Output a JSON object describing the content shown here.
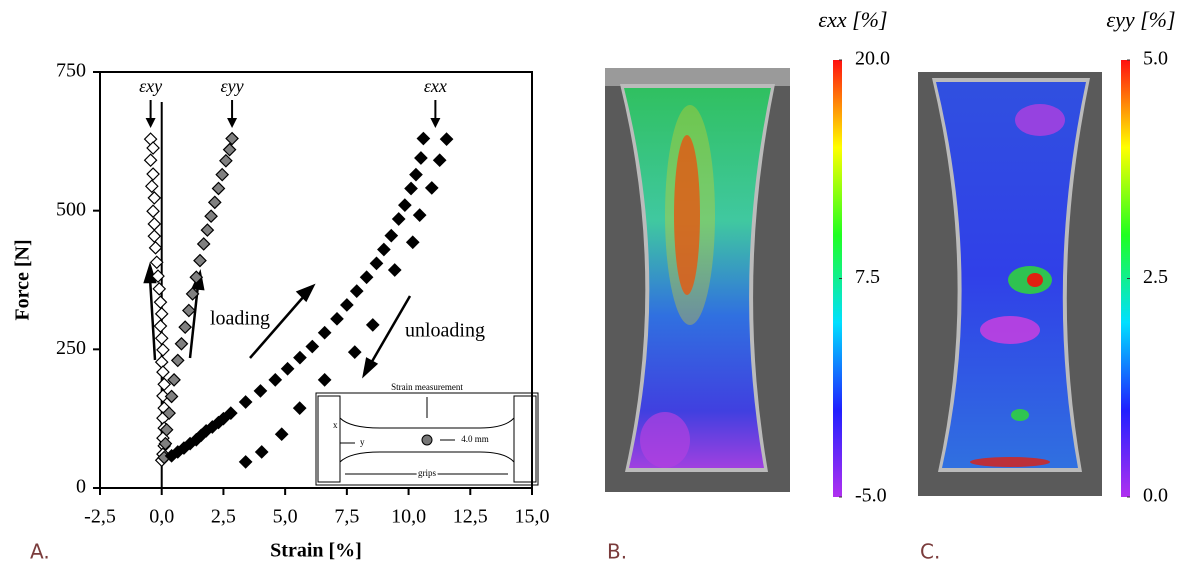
{
  "chart_data": [
    {
      "type": "scatter",
      "panel_label": "A.",
      "xlabel": "Strain [%]",
      "ylabel": "Force [N]",
      "xlim": [
        -2.5,
        15
      ],
      "ylim": [
        0,
        750
      ],
      "xticks": [
        {
          "value": -2.5,
          "label": "-2,5"
        },
        {
          "value": 0,
          "label": "0,0"
        },
        {
          "value": 2.5,
          "label": "2,5"
        },
        {
          "value": 5,
          "label": "5,0"
        },
        {
          "value": 7.5,
          "label": "7,5"
        },
        {
          "value": 10,
          "label": "10,0"
        },
        {
          "value": 12.5,
          "label": "12,5"
        },
        {
          "value": 15,
          "label": "15,0"
        }
      ],
      "yticks": [
        0,
        250,
        500,
        750
      ],
      "series": [
        {
          "name": "εxy",
          "color": "#ffffff",
          "x": [
            -0.45,
            -0.35,
            -0.45,
            -0.35,
            -0.4,
            -0.3,
            -0.35,
            -0.3,
            -0.3,
            -0.25,
            -0.2,
            -0.15,
            -0.1,
            -0.05,
            0,
            -0.05,
            0,
            0.05,
            0,
            0.05,
            0.1,
            0.05,
            0.1,
            0.05,
            0.1,
            0.05,
            0.1,
            0.05,
            0
          ],
          "values": [
            629,
            613,
            591,
            566,
            544,
            523,
            499,
            476,
            454,
            433,
            407,
            382,
            359,
            335,
            314,
            292,
            270,
            249,
            227,
            209,
            187,
            166,
            144,
            126,
            108,
            90,
            76,
            61,
            50
          ]
        },
        {
          "name": "εyy",
          "color": "#808080",
          "x": [
            0.1,
            0.15,
            0.2,
            0.3,
            0.4,
            0.5,
            0.65,
            0.8,
            0.95,
            1.1,
            1.25,
            1.4,
            1.55,
            1.7,
            1.85,
            2.0,
            2.15,
            2.3,
            2.45,
            2.6,
            2.75,
            2.85
          ],
          "values": [
            55,
            80,
            105,
            135,
            165,
            195,
            230,
            260,
            290,
            320,
            350,
            380,
            410,
            440,
            465,
            490,
            515,
            540,
            565,
            590,
            610,
            630
          ]
        },
        {
          "name": "εxx",
          "color": "#000000",
          "x": [
            0.4,
            0.65,
            0.9,
            1.15,
            1.4,
            1.6,
            1.8,
            2.05,
            2.3,
            2.5,
            2.8,
            3.4,
            4.0,
            4.6,
            5.1,
            5.6,
            6.1,
            6.6,
            7.1,
            7.5,
            7.9,
            8.3,
            8.7,
            9.0,
            9.3,
            9.6,
            9.85,
            10.1,
            10.3,
            10.5,
            10.6,
            11.54,
            11.26,
            10.94,
            10.45,
            10.17,
            9.44,
            8.55,
            7.82,
            6.6,
            5.59,
            4.86,
            4.05,
            3.4
          ],
          "values": [
            58,
            65,
            72,
            80,
            87,
            95,
            103,
            110,
            118,
            125,
            135,
            155,
            175,
            195,
            215,
            235,
            255,
            280,
            305,
            330,
            355,
            380,
            405,
            430,
            455,
            485,
            510,
            540,
            565,
            595,
            630,
            629,
            591,
            541,
            492,
            443,
            393,
            294,
            245,
            195,
            144,
            97,
            65,
            47
          ]
        }
      ],
      "annotations": [
        "loading",
        "unloading",
        "Strain measurement",
        "4.0 mm",
        "grips",
        "x",
        "y"
      ]
    },
    {
      "type": "colorbar",
      "panel_label": "B.",
      "title": "εxx [%]",
      "ylim": [
        -5,
        20
      ],
      "yticks": [
        {
          "value": -5,
          "label": "-5.0"
        },
        7.5,
        {
          "value": 20,
          "label": "20.0"
        }
      ],
      "colors": [
        "#b030f0",
        "#2020ff",
        "#00e0ff",
        "#20ff20",
        "#ffff00",
        "#ff1010"
      ]
    },
    {
      "type": "colorbar",
      "panel_label": "C.",
      "title": "εyy [%]",
      "ylim": [
        0,
        5
      ],
      "yticks": [
        {
          "value": 0,
          "label": "0.0"
        },
        2.5,
        {
          "value": 5,
          "label": "5.0"
        }
      ],
      "colors": [
        "#b030f0",
        "#2020ff",
        "#00e0ff",
        "#20ff20",
        "#ffff00",
        "#ff1010"
      ]
    }
  ]
}
